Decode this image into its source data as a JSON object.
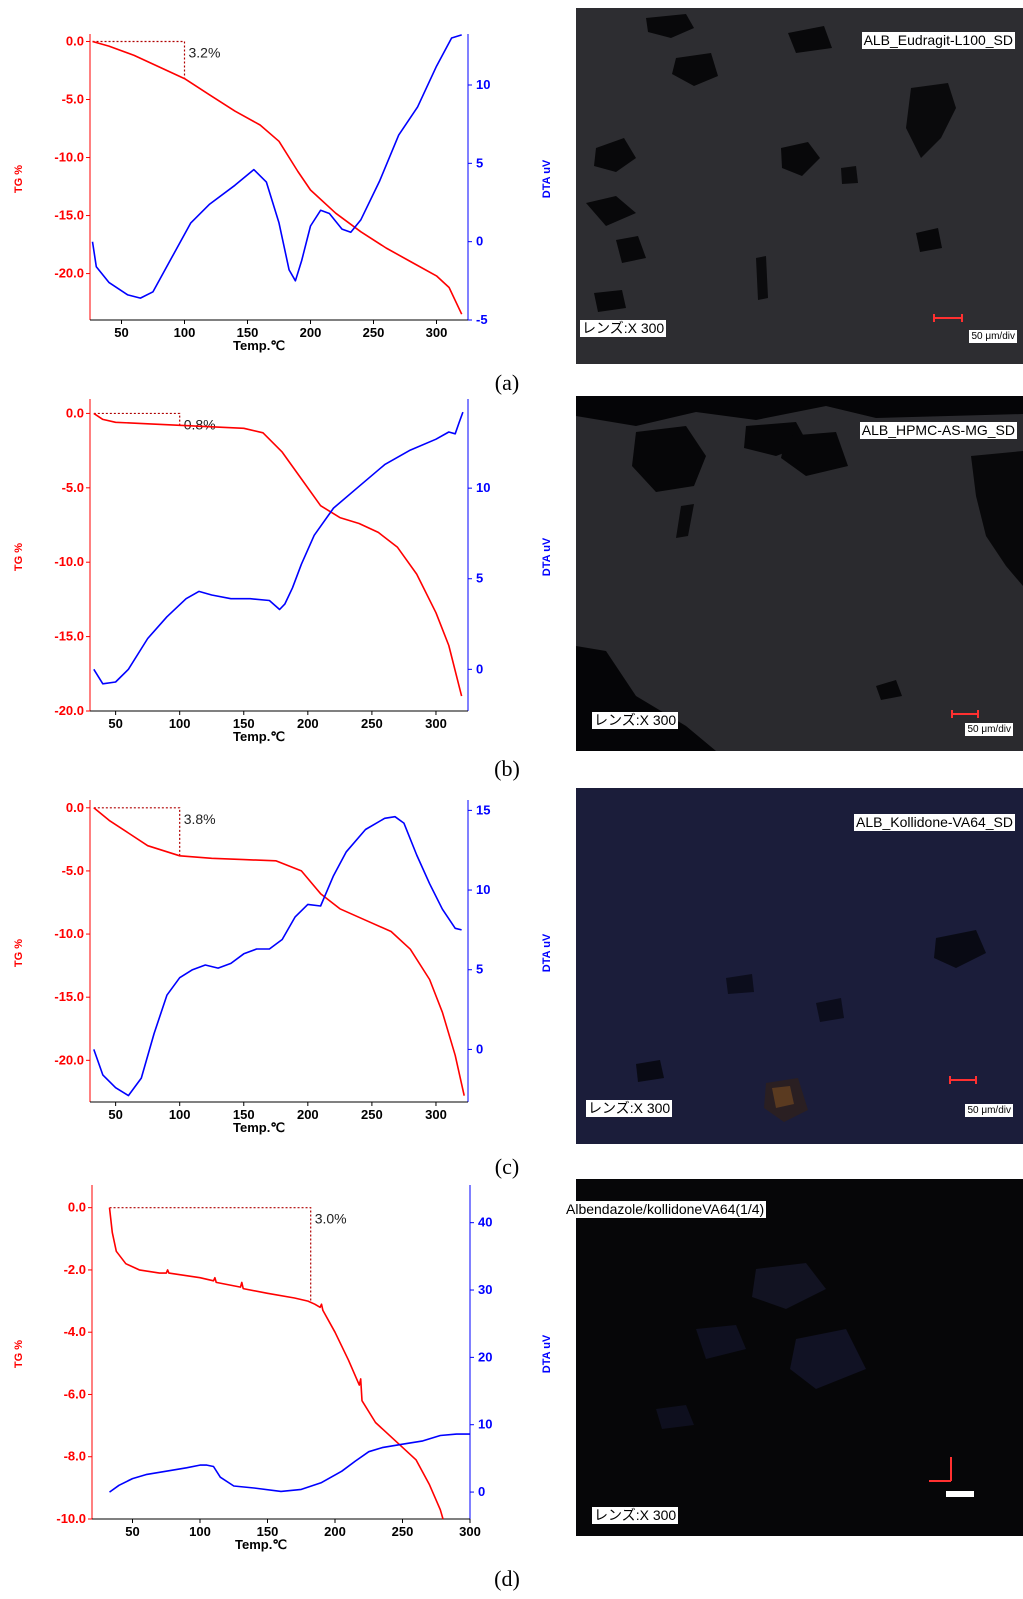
{
  "panels": [
    {
      "label": "(a)",
      "sample_label": "ALB_Eudragit-L100_SD",
      "lens_label": "レンズ:X 300",
      "scale_label": "50 μm/div"
    },
    {
      "label": "(b)",
      "sample_label": "ALB_HPMC-AS-MG_SD",
      "lens_label": "レンズ:X 300",
      "scale_label": "50 μm/div"
    },
    {
      "label": "(c)",
      "sample_label": "ALB_Kollidone-VA64_SD",
      "lens_label": "レンズ:X 300",
      "scale_label": "50 μm/div"
    },
    {
      "label": "(d)",
      "sample_label": "Albendazole/kollidoneVA64(1/4)",
      "lens_label": "レンズ:X 300",
      "scale_label": ""
    }
  ],
  "colors": {
    "tg": "#ff0000",
    "dta": "#0000ff",
    "annotation": "#b00000",
    "micro_bg_a": "#2d2d31",
    "micro_bg_b": "#2a2a2e",
    "micro_bg_c": "#1b1d3a",
    "micro_bg_d": "#060608"
  },
  "chart_data": [
    {
      "type": "line",
      "xlabel": "Temp.℃",
      "ylabel": "TG %",
      "y2label": "DTA uV",
      "xlim": [
        25,
        325
      ],
      "ylim": [
        -24,
        0.3
      ],
      "y2lim": [
        -5,
        13
      ],
      "xticks": [
        50,
        100,
        150,
        200,
        250,
        300
      ],
      "yticks": [
        0.0,
        -5.0,
        -10.0,
        -15.0,
        -20.0
      ],
      "y2ticks": [
        10,
        5,
        0,
        -5
      ],
      "annotation": {
        "text": "3.2%",
        "x": 100,
        "y": -3.2
      },
      "series": [
        {
          "name": "TG %",
          "axis": "left",
          "x": [
            27,
            40,
            60,
            80,
            100,
            120,
            140,
            160,
            175,
            190,
            200,
            220,
            240,
            260,
            280,
            300,
            310,
            320
          ],
          "y": [
            0,
            -0.4,
            -1.2,
            -2.2,
            -3.2,
            -4.6,
            -6.0,
            -7.2,
            -8.6,
            -11.2,
            -12.8,
            -14.8,
            -16.4,
            -17.8,
            -19.0,
            -20.2,
            -21.2,
            -23.5
          ]
        },
        {
          "name": "DTA uV",
          "axis": "right",
          "x": [
            27,
            30,
            40,
            55,
            65,
            75,
            90,
            105,
            120,
            140,
            155,
            165,
            175,
            183,
            188,
            193,
            200,
            208,
            215,
            225,
            232,
            240,
            255,
            270,
            285,
            300,
            312,
            320
          ],
          "y": [
            0,
            -1.6,
            -2.6,
            -3.4,
            -3.6,
            -3.2,
            -1.0,
            1.2,
            2.4,
            3.6,
            4.6,
            3.8,
            1.2,
            -1.8,
            -2.5,
            -1.2,
            1.0,
            2.0,
            1.8,
            0.8,
            0.6,
            1.4,
            3.9,
            6.8,
            8.6,
            11.2,
            13.0,
            13.2
          ]
        }
      ]
    },
    {
      "type": "line",
      "xlabel": "Temp.℃",
      "ylabel": "TG %",
      "y2label": "DTA uV",
      "xlim": [
        30,
        325
      ],
      "ylim": [
        -20.0,
        0.7
      ],
      "y2lim": [
        -2.3,
        14.7
      ],
      "xticks": [
        50,
        100,
        150,
        200,
        250,
        300
      ],
      "yticks": [
        0.0,
        -5.0,
        -10.0,
        -15.0,
        -20.0
      ],
      "y2ticks": [
        10,
        5,
        0
      ],
      "annotation": {
        "text": "0.8%",
        "x": 100,
        "y": -0.8
      },
      "series": [
        {
          "name": "TG %",
          "axis": "left",
          "x": [
            33,
            40,
            50,
            75,
            100,
            125,
            150,
            165,
            180,
            195,
            210,
            225,
            240,
            255,
            270,
            285,
            300,
            310,
            320
          ],
          "y": [
            0,
            -0.4,
            -0.6,
            -0.7,
            -0.8,
            -0.9,
            -1.0,
            -1.3,
            -2.6,
            -4.4,
            -6.2,
            -7.0,
            -7.4,
            -8.0,
            -9.0,
            -10.8,
            -13.4,
            -15.6,
            -19.0
          ]
        },
        {
          "name": "DTA uV",
          "axis": "right",
          "x": [
            33,
            40,
            50,
            60,
            75,
            90,
            105,
            115,
            125,
            140,
            155,
            170,
            178,
            182,
            188,
            195,
            205,
            220,
            240,
            260,
            280,
            300,
            310,
            315,
            318,
            321
          ],
          "y": [
            0,
            -0.8,
            -0.7,
            0,
            1.7,
            2.9,
            3.9,
            4.3,
            4.1,
            3.9,
            3.9,
            3.8,
            3.3,
            3.6,
            4.5,
            5.8,
            7.4,
            8.9,
            10.1,
            11.3,
            12.1,
            12.7,
            13.1,
            13.0,
            13.6,
            14.2
          ]
        }
      ]
    },
    {
      "type": "line",
      "xlabel": "Temp.℃",
      "ylabel": "TG %",
      "y2label": "DTA uV",
      "xlim": [
        30,
        325
      ],
      "ylim": [
        -23.3,
        0.3
      ],
      "y2lim": [
        -3.3,
        15.4
      ],
      "xticks": [
        50,
        100,
        150,
        200,
        250,
        300
      ],
      "yticks": [
        0.0,
        -5.0,
        -10.0,
        -15.0,
        -20.0
      ],
      "y2ticks": [
        15,
        10,
        5,
        0
      ],
      "annotation": {
        "text": "3.8%",
        "x": 100,
        "y": -3.8
      },
      "series": [
        {
          "name": "TG %",
          "axis": "left",
          "x": [
            33,
            45,
            60,
            75,
            100,
            125,
            150,
            175,
            195,
            210,
            225,
            245,
            265,
            280,
            295,
            305,
            315,
            322
          ],
          "y": [
            0,
            -1.0,
            -2.0,
            -3.0,
            -3.8,
            -4.0,
            -4.1,
            -4.2,
            -5.0,
            -6.8,
            -8.0,
            -8.9,
            -9.8,
            -11.2,
            -13.6,
            -16.2,
            -19.6,
            -22.8
          ]
        },
        {
          "name": "DTA uV",
          "axis": "right",
          "x": [
            33,
            40,
            50,
            60,
            70,
            80,
            90,
            100,
            110,
            120,
            130,
            140,
            150,
            160,
            170,
            180,
            190,
            200,
            210,
            220,
            230,
            245,
            260,
            268,
            275,
            285,
            295,
            305,
            315,
            320
          ],
          "y": [
            0,
            -1.6,
            -2.4,
            -2.9,
            -1.8,
            1.0,
            3.4,
            4.5,
            5.0,
            5.3,
            5.1,
            5.4,
            6.0,
            6.3,
            6.3,
            6.9,
            8.3,
            9.1,
            9.0,
            10.9,
            12.4,
            13.8,
            14.5,
            14.6,
            14.2,
            12.2,
            10.4,
            8.8,
            7.6,
            7.5
          ]
        }
      ]
    },
    {
      "type": "line",
      "xlabel": "Temp.℃",
      "ylabel": "TG %",
      "y2label": "DTA uV",
      "xlim": [
        20,
        300
      ],
      "ylim": [
        -10.0,
        0.6
      ],
      "y2lim": [
        -4,
        45
      ],
      "xticks": [
        50,
        100,
        150,
        200,
        250,
        300
      ],
      "yticks": [
        0.0,
        -2.0,
        -4.0,
        -6.0,
        -8.0,
        -10.0
      ],
      "y2ticks": [
        40,
        30,
        20,
        10,
        0
      ],
      "annotation": {
        "text": "3.0%",
        "x": 182,
        "y": -3.0
      },
      "series": [
        {
          "name": "TG %",
          "axis": "left",
          "x": [
            33,
            35,
            38,
            45,
            55,
            70,
            75,
            76,
            77,
            100,
            110,
            111,
            112,
            130,
            131,
            132,
            150,
            170,
            180,
            185,
            189,
            190,
            191,
            200,
            210,
            218,
            219,
            220,
            230,
            245,
            260,
            270,
            278,
            280
          ],
          "y": [
            0,
            -0.8,
            -1.4,
            -1.8,
            -2.0,
            -2.1,
            -2.1,
            -2.0,
            -2.1,
            -2.25,
            -2.35,
            -2.25,
            -2.4,
            -2.55,
            -2.4,
            -2.6,
            -2.75,
            -2.9,
            -3.0,
            -3.1,
            -3.2,
            -3.1,
            -3.3,
            -4.0,
            -4.9,
            -5.7,
            -5.5,
            -6.2,
            -6.9,
            -7.5,
            -8.1,
            -8.9,
            -9.7,
            -10.0
          ]
        },
        {
          "name": "DTA uV",
          "axis": "right",
          "x": [
            33,
            40,
            50,
            60,
            75,
            90,
            100,
            105,
            110,
            115,
            125,
            140,
            160,
            175,
            190,
            205,
            215,
            225,
            235,
            250,
            265,
            278,
            290,
            300
          ],
          "y": [
            0,
            1.0,
            2.0,
            2.6,
            3.1,
            3.6,
            4.0,
            4.0,
            3.8,
            2.2,
            0.9,
            0.6,
            0.1,
            0.4,
            1.4,
            3.1,
            4.6,
            6.0,
            6.6,
            7.1,
            7.6,
            8.4,
            8.6,
            8.6
          ]
        }
      ]
    }
  ]
}
